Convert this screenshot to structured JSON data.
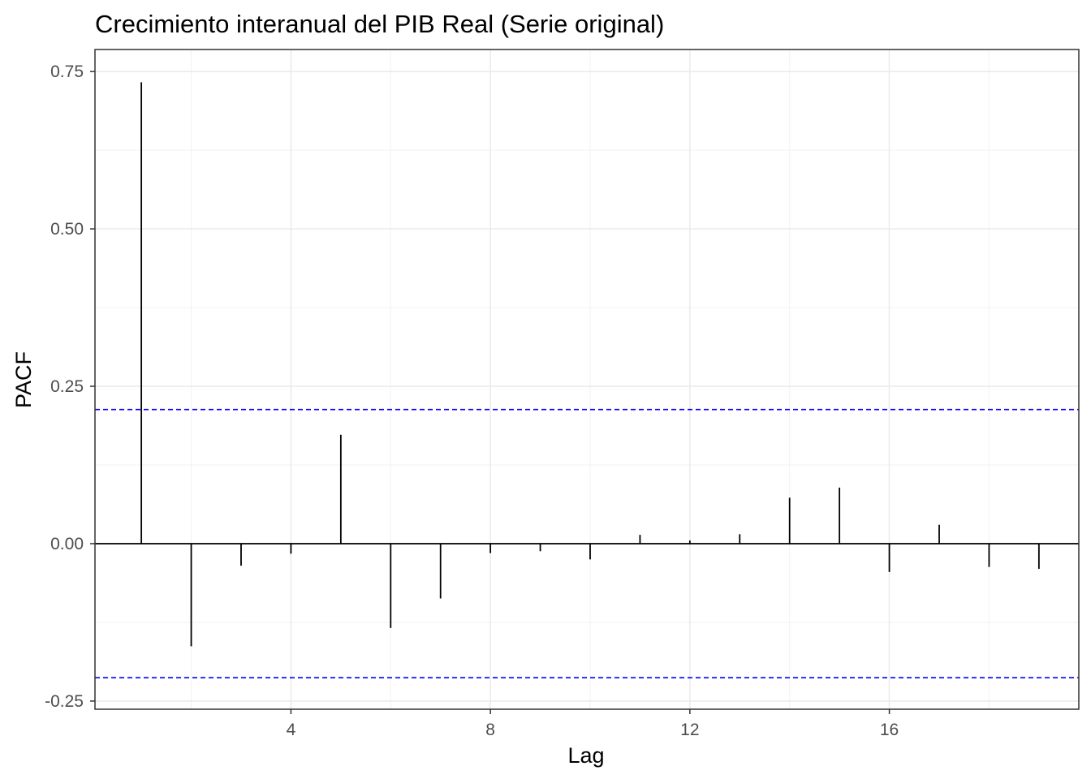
{
  "chart_data": {
    "type": "bar",
    "title": "Crecimiento interanual del PIB Real (Serie original)",
    "xlabel": "Lag",
    "ylabel": "PACF",
    "x": [
      1,
      2,
      3,
      4,
      5,
      6,
      7,
      8,
      9,
      10,
      11,
      12,
      13,
      14,
      15,
      16,
      17,
      18,
      19
    ],
    "values": [
      0.733,
      -0.163,
      -0.035,
      -0.016,
      0.173,
      -0.134,
      -0.087,
      -0.015,
      -0.012,
      -0.025,
      0.014,
      0.005,
      0.015,
      0.073,
      0.089,
      -0.045,
      0.03,
      -0.037,
      -0.04
    ],
    "confidence_bounds": [
      0.213,
      -0.213
    ],
    "confidence_line_color": "#0000ff",
    "bar_color": "#000000",
    "xlim": [
      0.07,
      19.8
    ],
    "ylim": [
      -0.263,
      0.785
    ],
    "x_ticks": [
      4,
      8,
      12,
      16
    ],
    "x_tick_labels": [
      "4",
      "8",
      "12",
      "16"
    ],
    "y_ticks": [
      0.75,
      0.5,
      0.25,
      0.0,
      -0.25
    ],
    "y_tick_labels": [
      "0.75",
      "0.50",
      "0.25",
      "0.00",
      "-0.25"
    ],
    "grid": true,
    "theme": "bw"
  }
}
